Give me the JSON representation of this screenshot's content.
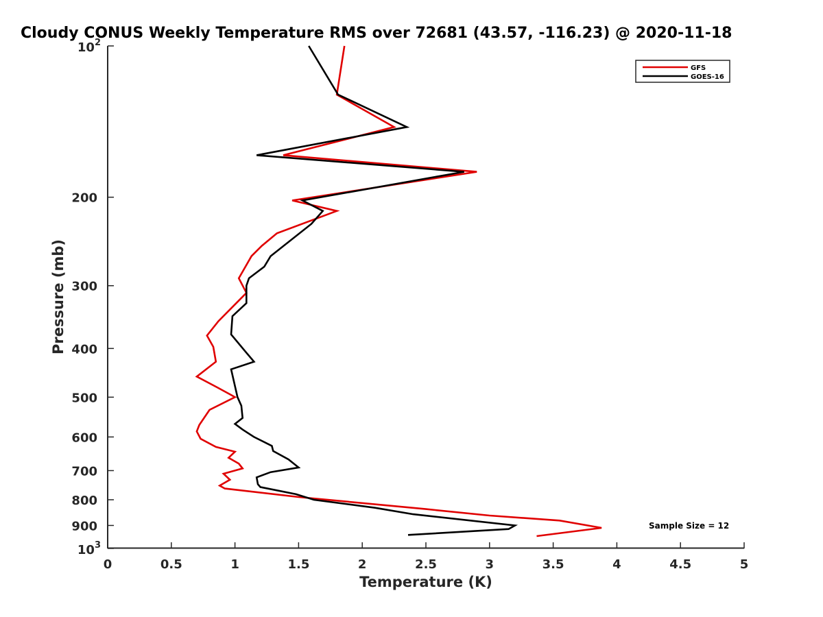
{
  "chart_data": {
    "type": "line",
    "title": "Cloudy CONUS Weekly Temperature RMS over 72681 (43.57, -116.23) @ 2020-11-18",
    "xlabel": "Temperature (K)",
    "ylabel": "Pressure (mb)",
    "xlim": [
      0,
      5
    ],
    "ylim": [
      1000,
      100
    ],
    "y_scale": "log",
    "x_ticks": [
      0,
      0.5,
      1,
      1.5,
      2,
      2.5,
      3,
      3.5,
      4,
      4.5,
      5
    ],
    "x_tick_labels": [
      "0",
      "0.5",
      "1",
      "1.5",
      "2",
      "2.5",
      "3",
      "3.5",
      "4",
      "4.5",
      "5"
    ],
    "y_ticks": [
      200,
      300,
      400,
      500,
      600,
      700,
      800,
      900
    ],
    "y_tick_labels": [
      "200",
      "300",
      "400",
      "500",
      "600",
      "700",
      "800",
      "900"
    ],
    "y_end_labels": [
      {
        "value": 100,
        "base": "10",
        "exp": "2"
      },
      {
        "value": 1000,
        "base": "10",
        "exp": "3"
      }
    ],
    "grid": false,
    "legend_position": "top-right",
    "annotation": "Sample Size = 12",
    "series": [
      {
        "name": "GFS",
        "color": "#e00000",
        "points": [
          [
            1.86,
            100
          ],
          [
            1.8,
            125
          ],
          [
            2.25,
            145
          ],
          [
            1.38,
            165
          ],
          [
            2.9,
            178
          ],
          [
            1.45,
            203
          ],
          [
            1.8,
            213
          ],
          [
            1.33,
            236
          ],
          [
            1.21,
            250
          ],
          [
            1.13,
            262
          ],
          [
            1.03,
            290
          ],
          [
            1.09,
            310
          ],
          [
            0.87,
            353
          ],
          [
            0.78,
            377
          ],
          [
            0.83,
            397
          ],
          [
            0.85,
            425
          ],
          [
            0.7,
            455
          ],
          [
            0.86,
            478
          ],
          [
            0.97,
            495
          ],
          [
            1.0,
            500
          ],
          [
            0.8,
            530
          ],
          [
            0.72,
            568
          ],
          [
            0.7,
            585
          ],
          [
            0.73,
            605
          ],
          [
            0.85,
            628
          ],
          [
            1.0,
            642
          ],
          [
            0.95,
            660
          ],
          [
            1.03,
            678
          ],
          [
            1.06,
            693
          ],
          [
            0.91,
            710
          ],
          [
            0.96,
            730
          ],
          [
            0.88,
            750
          ],
          [
            0.92,
            760
          ],
          [
            1.5,
            790
          ],
          [
            2.5,
            835
          ],
          [
            3.0,
            860
          ],
          [
            3.55,
            880
          ],
          [
            3.88,
            910
          ],
          [
            3.37,
            945
          ]
        ]
      },
      {
        "name": "GOES-16",
        "color": "#000000",
        "points": [
          [
            1.58,
            100
          ],
          [
            1.81,
            125
          ],
          [
            2.35,
            145
          ],
          [
            1.17,
            165
          ],
          [
            2.8,
            178
          ],
          [
            1.53,
            203
          ],
          [
            1.69,
            213
          ],
          [
            1.6,
            226
          ],
          [
            1.28,
            262
          ],
          [
            1.23,
            275
          ],
          [
            1.11,
            290
          ],
          [
            1.09,
            300
          ],
          [
            1.09,
            325
          ],
          [
            0.98,
            345
          ],
          [
            0.97,
            375
          ],
          [
            1.08,
            405
          ],
          [
            1.15,
            425
          ],
          [
            0.97,
            440
          ],
          [
            1.02,
            500
          ],
          [
            1.05,
            520
          ],
          [
            1.06,
            550
          ],
          [
            1.0,
            565
          ],
          [
            1.06,
            580
          ],
          [
            1.15,
            600
          ],
          [
            1.29,
            625
          ],
          [
            1.3,
            640
          ],
          [
            1.42,
            665
          ],
          [
            1.5,
            690
          ],
          [
            1.28,
            705
          ],
          [
            1.17,
            722
          ],
          [
            1.18,
            745
          ],
          [
            1.2,
            755
          ],
          [
            1.48,
            780
          ],
          [
            1.62,
            800
          ],
          [
            2.1,
            830
          ],
          [
            2.4,
            855
          ],
          [
            3.2,
            900
          ],
          [
            3.15,
            915
          ],
          [
            2.36,
            940
          ]
        ]
      }
    ]
  }
}
